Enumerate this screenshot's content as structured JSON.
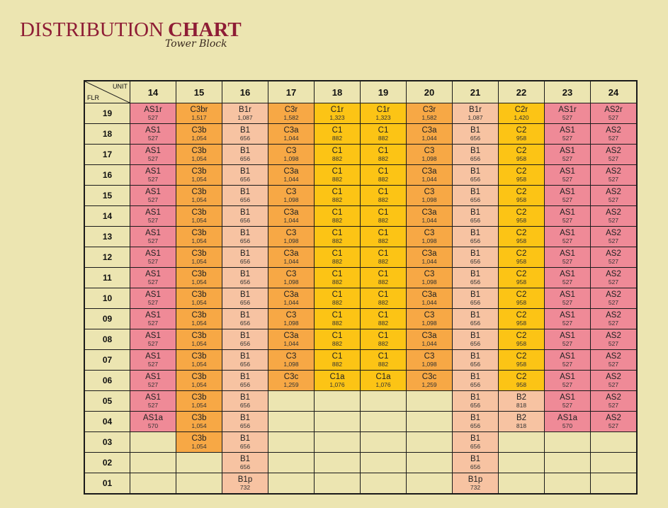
{
  "title": {
    "part1": "DISTRIBUTION",
    "part2": "CHART",
    "subtitle": "Tower Block"
  },
  "header": {
    "unit_label": "UNIT",
    "floor_label": "FLR"
  },
  "columns": [
    "14",
    "15",
    "16",
    "17",
    "18",
    "19",
    "20",
    "21",
    "22",
    "23",
    "24"
  ],
  "colors": {
    "pink": "#ef8a97",
    "peach": "#f7c3a2",
    "orange": "#f7a845",
    "yellow": "#fcc415",
    "empty": "#ece5b1"
  },
  "rows": [
    {
      "floor": "19",
      "cells": [
        [
          "AS1r",
          "527",
          "pink"
        ],
        [
          "C3br",
          "1,517",
          "orange"
        ],
        [
          "B1r",
          "1,087",
          "peach"
        ],
        [
          "C3r",
          "1,582",
          "orange"
        ],
        [
          "C1r",
          "1,323",
          "yellow"
        ],
        [
          "C1r",
          "1,323",
          "yellow"
        ],
        [
          "C3r",
          "1,582",
          "orange"
        ],
        [
          "B1r",
          "1,087",
          "peach"
        ],
        [
          "C2r",
          "1,420",
          "yellow"
        ],
        [
          "AS1r",
          "527",
          "pink"
        ],
        [
          "AS2r",
          "527",
          "pink"
        ]
      ]
    },
    {
      "floor": "18",
      "cells": [
        [
          "AS1",
          "527",
          "pink"
        ],
        [
          "C3b",
          "1,054",
          "orange"
        ],
        [
          "B1",
          "656",
          "peach"
        ],
        [
          "C3a",
          "1,044",
          "orange"
        ],
        [
          "C1",
          "882",
          "yellow"
        ],
        [
          "C1",
          "882",
          "yellow"
        ],
        [
          "C3a",
          "1,044",
          "orange"
        ],
        [
          "B1",
          "656",
          "peach"
        ],
        [
          "C2",
          "958",
          "yellow"
        ],
        [
          "AS1",
          "527",
          "pink"
        ],
        [
          "AS2",
          "527",
          "pink"
        ]
      ]
    },
    {
      "floor": "17",
      "cells": [
        [
          "AS1",
          "527",
          "pink"
        ],
        [
          "C3b",
          "1,054",
          "orange"
        ],
        [
          "B1",
          "656",
          "peach"
        ],
        [
          "C3",
          "1,098",
          "orange"
        ],
        [
          "C1",
          "882",
          "yellow"
        ],
        [
          "C1",
          "882",
          "yellow"
        ],
        [
          "C3",
          "1,098",
          "orange"
        ],
        [
          "B1",
          "656",
          "peach"
        ],
        [
          "C2",
          "958",
          "yellow"
        ],
        [
          "AS1",
          "527",
          "pink"
        ],
        [
          "AS2",
          "527",
          "pink"
        ]
      ]
    },
    {
      "floor": "16",
      "cells": [
        [
          "AS1",
          "527",
          "pink"
        ],
        [
          "C3b",
          "1,054",
          "orange"
        ],
        [
          "B1",
          "656",
          "peach"
        ],
        [
          "C3a",
          "1,044",
          "orange"
        ],
        [
          "C1",
          "882",
          "yellow"
        ],
        [
          "C1",
          "882",
          "yellow"
        ],
        [
          "C3a",
          "1,044",
          "orange"
        ],
        [
          "B1",
          "656",
          "peach"
        ],
        [
          "C2",
          "958",
          "yellow"
        ],
        [
          "AS1",
          "527",
          "pink"
        ],
        [
          "AS2",
          "527",
          "pink"
        ]
      ]
    },
    {
      "floor": "15",
      "cells": [
        [
          "AS1",
          "527",
          "pink"
        ],
        [
          "C3b",
          "1,054",
          "orange"
        ],
        [
          "B1",
          "656",
          "peach"
        ],
        [
          "C3",
          "1,098",
          "orange"
        ],
        [
          "C1",
          "882",
          "yellow"
        ],
        [
          "C1",
          "882",
          "yellow"
        ],
        [
          "C3",
          "1,098",
          "orange"
        ],
        [
          "B1",
          "656",
          "peach"
        ],
        [
          "C2",
          "958",
          "yellow"
        ],
        [
          "AS1",
          "527",
          "pink"
        ],
        [
          "AS2",
          "527",
          "pink"
        ]
      ]
    },
    {
      "floor": "14",
      "cells": [
        [
          "AS1",
          "527",
          "pink"
        ],
        [
          "C3b",
          "1,054",
          "orange"
        ],
        [
          "B1",
          "656",
          "peach"
        ],
        [
          "C3a",
          "1,044",
          "orange"
        ],
        [
          "C1",
          "882",
          "yellow"
        ],
        [
          "C1",
          "882",
          "yellow"
        ],
        [
          "C3a",
          "1,044",
          "orange"
        ],
        [
          "B1",
          "656",
          "peach"
        ],
        [
          "C2",
          "958",
          "yellow"
        ],
        [
          "AS1",
          "527",
          "pink"
        ],
        [
          "AS2",
          "527",
          "pink"
        ]
      ]
    },
    {
      "floor": "13",
      "cells": [
        [
          "AS1",
          "527",
          "pink"
        ],
        [
          "C3b",
          "1,054",
          "orange"
        ],
        [
          "B1",
          "656",
          "peach"
        ],
        [
          "C3",
          "1,098",
          "orange"
        ],
        [
          "C1",
          "882",
          "yellow"
        ],
        [
          "C1",
          "882",
          "yellow"
        ],
        [
          "C3",
          "1,098",
          "orange"
        ],
        [
          "B1",
          "656",
          "peach"
        ],
        [
          "C2",
          "958",
          "yellow"
        ],
        [
          "AS1",
          "527",
          "pink"
        ],
        [
          "AS2",
          "527",
          "pink"
        ]
      ]
    },
    {
      "floor": "12",
      "cells": [
        [
          "AS1",
          "527",
          "pink"
        ],
        [
          "C3b",
          "1,054",
          "orange"
        ],
        [
          "B1",
          "656",
          "peach"
        ],
        [
          "C3a",
          "1,044",
          "orange"
        ],
        [
          "C1",
          "882",
          "yellow"
        ],
        [
          "C1",
          "882",
          "yellow"
        ],
        [
          "C3a",
          "1,044",
          "orange"
        ],
        [
          "B1",
          "656",
          "peach"
        ],
        [
          "C2",
          "958",
          "yellow"
        ],
        [
          "AS1",
          "527",
          "pink"
        ],
        [
          "AS2",
          "527",
          "pink"
        ]
      ]
    },
    {
      "floor": "11",
      "cells": [
        [
          "AS1",
          "527",
          "pink"
        ],
        [
          "C3b",
          "1,054",
          "orange"
        ],
        [
          "B1",
          "656",
          "peach"
        ],
        [
          "C3",
          "1,098",
          "orange"
        ],
        [
          "C1",
          "882",
          "yellow"
        ],
        [
          "C1",
          "882",
          "yellow"
        ],
        [
          "C3",
          "1,098",
          "orange"
        ],
        [
          "B1",
          "656",
          "peach"
        ],
        [
          "C2",
          "958",
          "yellow"
        ],
        [
          "AS1",
          "527",
          "pink"
        ],
        [
          "AS2",
          "527",
          "pink"
        ]
      ]
    },
    {
      "floor": "10",
      "cells": [
        [
          "AS1",
          "527",
          "pink"
        ],
        [
          "C3b",
          "1,054",
          "orange"
        ],
        [
          "B1",
          "656",
          "peach"
        ],
        [
          "C3a",
          "1,044",
          "orange"
        ],
        [
          "C1",
          "882",
          "yellow"
        ],
        [
          "C1",
          "882",
          "yellow"
        ],
        [
          "C3a",
          "1,044",
          "orange"
        ],
        [
          "B1",
          "656",
          "peach"
        ],
        [
          "C2",
          "958",
          "yellow"
        ],
        [
          "AS1",
          "527",
          "pink"
        ],
        [
          "AS2",
          "527",
          "pink"
        ]
      ]
    },
    {
      "floor": "09",
      "cells": [
        [
          "AS1",
          "527",
          "pink"
        ],
        [
          "C3b",
          "1,054",
          "orange"
        ],
        [
          "B1",
          "656",
          "peach"
        ],
        [
          "C3",
          "1,098",
          "orange"
        ],
        [
          "C1",
          "882",
          "yellow"
        ],
        [
          "C1",
          "882",
          "yellow"
        ],
        [
          "C3",
          "1,098",
          "orange"
        ],
        [
          "B1",
          "656",
          "peach"
        ],
        [
          "C2",
          "958",
          "yellow"
        ],
        [
          "AS1",
          "527",
          "pink"
        ],
        [
          "AS2",
          "527",
          "pink"
        ]
      ]
    },
    {
      "floor": "08",
      "cells": [
        [
          "AS1",
          "527",
          "pink"
        ],
        [
          "C3b",
          "1,054",
          "orange"
        ],
        [
          "B1",
          "656",
          "peach"
        ],
        [
          "C3a",
          "1,044",
          "orange"
        ],
        [
          "C1",
          "882",
          "yellow"
        ],
        [
          "C1",
          "882",
          "yellow"
        ],
        [
          "C3a",
          "1,044",
          "orange"
        ],
        [
          "B1",
          "656",
          "peach"
        ],
        [
          "C2",
          "958",
          "yellow"
        ],
        [
          "AS1",
          "527",
          "pink"
        ],
        [
          "AS2",
          "527",
          "pink"
        ]
      ]
    },
    {
      "floor": "07",
      "cells": [
        [
          "AS1",
          "527",
          "pink"
        ],
        [
          "C3b",
          "1,054",
          "orange"
        ],
        [
          "B1",
          "656",
          "peach"
        ],
        [
          "C3",
          "1,098",
          "orange"
        ],
        [
          "C1",
          "882",
          "yellow"
        ],
        [
          "C1",
          "882",
          "yellow"
        ],
        [
          "C3",
          "1,098",
          "orange"
        ],
        [
          "B1",
          "656",
          "peach"
        ],
        [
          "C2",
          "958",
          "yellow"
        ],
        [
          "AS1",
          "527",
          "pink"
        ],
        [
          "AS2",
          "527",
          "pink"
        ]
      ]
    },
    {
      "floor": "06",
      "cells": [
        [
          "AS1",
          "527",
          "pink"
        ],
        [
          "C3b",
          "1,054",
          "orange"
        ],
        [
          "B1",
          "656",
          "peach"
        ],
        [
          "C3c",
          "1,259",
          "orange"
        ],
        [
          "C1a",
          "1,076",
          "yellow"
        ],
        [
          "C1a",
          "1,076",
          "yellow"
        ],
        [
          "C3c",
          "1,259",
          "orange"
        ],
        [
          "B1",
          "656",
          "peach"
        ],
        [
          "C2",
          "958",
          "yellow"
        ],
        [
          "AS1",
          "527",
          "pink"
        ],
        [
          "AS2",
          "527",
          "pink"
        ]
      ]
    },
    {
      "floor": "05",
      "cells": [
        [
          "AS1",
          "527",
          "pink"
        ],
        [
          "C3b",
          "1,054",
          "orange"
        ],
        [
          "B1",
          "656",
          "peach"
        ],
        [
          "",
          "",
          "empty"
        ],
        [
          "",
          "",
          "empty"
        ],
        [
          "",
          "",
          "empty"
        ],
        [
          "",
          "",
          "empty"
        ],
        [
          "B1",
          "656",
          "peach"
        ],
        [
          "B2",
          "818",
          "peach"
        ],
        [
          "AS1",
          "527",
          "pink"
        ],
        [
          "AS2",
          "527",
          "pink"
        ]
      ]
    },
    {
      "floor": "04",
      "cells": [
        [
          "AS1a",
          "570",
          "pink"
        ],
        [
          "C3b",
          "1,054",
          "orange"
        ],
        [
          "B1",
          "656",
          "peach"
        ],
        [
          "",
          "",
          "empty"
        ],
        [
          "",
          "",
          "empty"
        ],
        [
          "",
          "",
          "empty"
        ],
        [
          "",
          "",
          "empty"
        ],
        [
          "B1",
          "656",
          "peach"
        ],
        [
          "B2",
          "818",
          "peach"
        ],
        [
          "AS1a",
          "570",
          "pink"
        ],
        [
          "AS2",
          "527",
          "pink"
        ]
      ]
    },
    {
      "floor": "03",
      "cells": [
        [
          "",
          "",
          "empty"
        ],
        [
          "C3b",
          "1,054",
          "orange"
        ],
        [
          "B1",
          "656",
          "peach"
        ],
        [
          "",
          "",
          "empty"
        ],
        [
          "",
          "",
          "empty"
        ],
        [
          "",
          "",
          "empty"
        ],
        [
          "",
          "",
          "empty"
        ],
        [
          "B1",
          "656",
          "peach"
        ],
        [
          "",
          "",
          "empty"
        ],
        [
          "",
          "",
          "empty"
        ],
        [
          "",
          "",
          "empty"
        ]
      ]
    },
    {
      "floor": "02",
      "cells": [
        [
          "",
          "",
          "empty"
        ],
        [
          "",
          "",
          "empty"
        ],
        [
          "B1",
          "656",
          "peach"
        ],
        [
          "",
          "",
          "empty"
        ],
        [
          "",
          "",
          "empty"
        ],
        [
          "",
          "",
          "empty"
        ],
        [
          "",
          "",
          "empty"
        ],
        [
          "B1",
          "656",
          "peach"
        ],
        [
          "",
          "",
          "empty"
        ],
        [
          "",
          "",
          "empty"
        ],
        [
          "",
          "",
          "empty"
        ]
      ]
    },
    {
      "floor": "01",
      "cells": [
        [
          "",
          "",
          "empty"
        ],
        [
          "",
          "",
          "empty"
        ],
        [
          "B1p",
          "732",
          "peach"
        ],
        [
          "",
          "",
          "empty"
        ],
        [
          "",
          "",
          "empty"
        ],
        [
          "",
          "",
          "empty"
        ],
        [
          "",
          "",
          "empty"
        ],
        [
          "B1p",
          "732",
          "peach"
        ],
        [
          "",
          "",
          "empty"
        ],
        [
          "",
          "",
          "empty"
        ],
        [
          "",
          "",
          "empty"
        ]
      ]
    }
  ]
}
